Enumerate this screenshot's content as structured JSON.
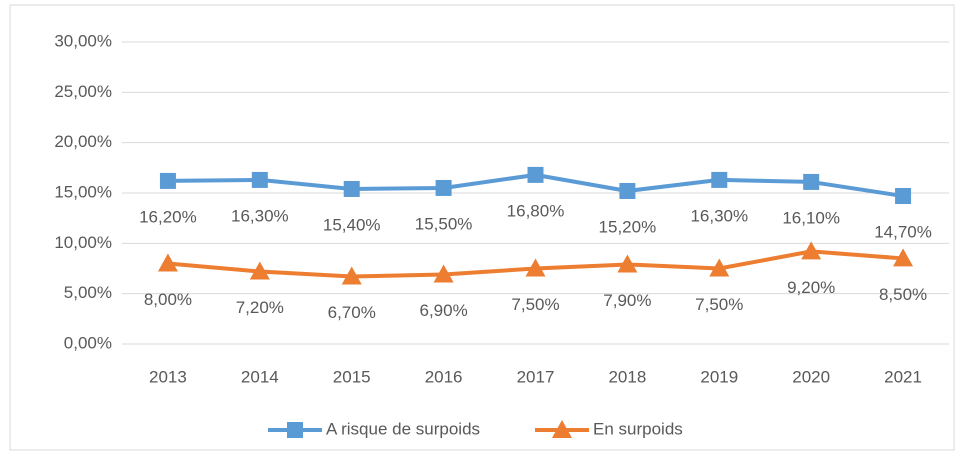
{
  "chart_data": {
    "type": "line",
    "categories": [
      "2013",
      "2014",
      "2015",
      "2016",
      "2017",
      "2018",
      "2019",
      "2020",
      "2021"
    ],
    "series": [
      {
        "name": "A risque de surpoids",
        "color": "#5b9bd5",
        "marker": "square",
        "values": [
          16.2,
          16.3,
          15.4,
          15.5,
          16.8,
          15.2,
          16.3,
          16.1,
          14.7
        ],
        "value_labels": [
          "16,20%",
          "16,30%",
          "15,40%",
          "15,50%",
          "16,80%",
          "15,20%",
          "16,30%",
          "16,10%",
          "14,70%"
        ]
      },
      {
        "name": "En surpoids",
        "color": "#ed7d31",
        "marker": "triangle",
        "values": [
          8.0,
          7.2,
          6.7,
          6.9,
          7.5,
          7.9,
          7.5,
          9.2,
          8.5
        ],
        "value_labels": [
          "8,00%",
          "7,20%",
          "6,70%",
          "6,90%",
          "7,50%",
          "7,90%",
          "7,50%",
          "9,20%",
          "8,50%"
        ]
      }
    ],
    "ylim": [
      0,
      30
    ],
    "yticks": [
      {
        "value": 0,
        "label": "0,00%"
      },
      {
        "value": 5,
        "label": "5,00%"
      },
      {
        "value": 10,
        "label": "10,00%"
      },
      {
        "value": 15,
        "label": "15,00%"
      },
      {
        "value": 20,
        "label": "20,00%"
      },
      {
        "value": 25,
        "label": "25,00%"
      },
      {
        "value": 30,
        "label": "30,00%"
      }
    ],
    "grid": true,
    "legend": "bottom"
  }
}
